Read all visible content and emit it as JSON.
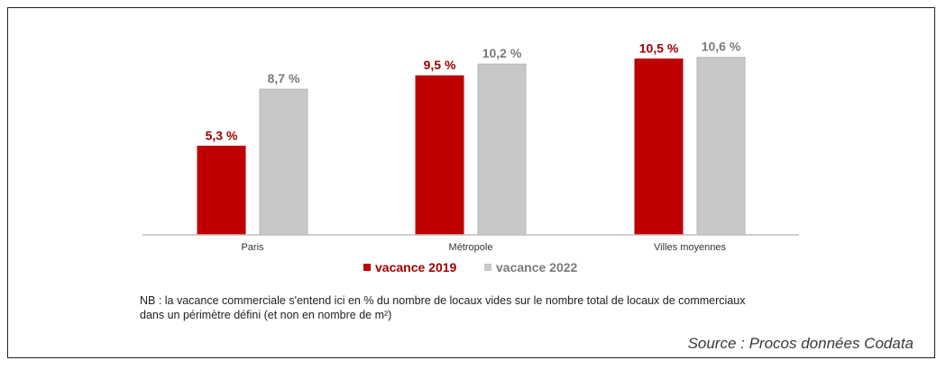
{
  "chart_data": {
    "type": "bar",
    "categories": [
      "Paris",
      "Métropole",
      "Villes moyennes"
    ],
    "series": [
      {
        "name": "vacance 2019",
        "values": [
          5.3,
          9.5,
          10.5
        ],
        "labels": [
          "5,3 %",
          "9,5 %",
          "10,5 %"
        ],
        "color": "#c00000",
        "label_color": "#a00000"
      },
      {
        "name": "vacance 2022",
        "values": [
          8.7,
          10.2,
          10.6
        ],
        "labels": [
          "8,7 %",
          "10,2 %",
          "10,6 %"
        ],
        "color": "#c8c8c8",
        "label_color": "#7a7a7a"
      }
    ],
    "ylim": [
      0,
      11.5
    ],
    "grid": false,
    "legend_position": "bottom-center",
    "xlabel": "",
    "ylabel": ""
  },
  "note": "NB : la vacance commerciale s'entend ici en % du nombre de locaux vides sur le nombre total de locaux de commerciaux dans un périmètre défini (et non en nombre de m²)",
  "source": "Source : Procos données Codata"
}
